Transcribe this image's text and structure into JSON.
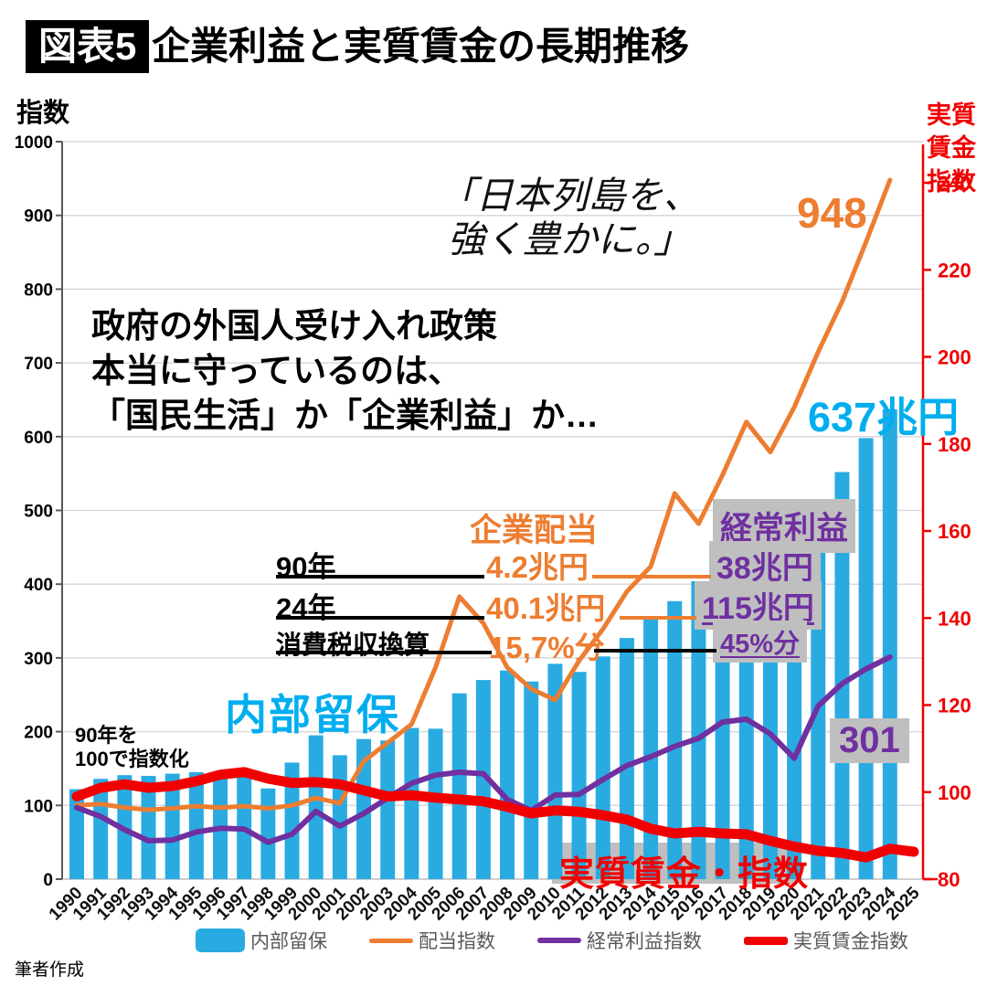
{
  "header": {
    "tag": "図表5",
    "title": "企業利益と実質賃金の長期推移"
  },
  "left_axis_title": "指数",
  "right_axis_title_lines": [
    "実質",
    "賃金",
    "指数"
  ],
  "annotations": {
    "quote": [
      "「日本列島を、",
      "強く豊かに。」"
    ],
    "black_note": [
      "政府の外国人受け入れ政策",
      "本当に守っているのは、",
      "「国民生活」か「企業利益」か…"
    ],
    "dividend_peak": "948",
    "reserves_value": "637兆円",
    "reserves_label": "内部留保",
    "profit_peak": "301",
    "index_note": [
      "90年を",
      "100で指数化"
    ],
    "real_wage_label": "実質賃金・指数",
    "table": {
      "col_dividend_header": "企業配当",
      "col_profit_header": "経常利益",
      "rows": [
        {
          "label": "90年",
          "dividend": "4.2兆円",
          "profit": "38兆円"
        },
        {
          "label": "24年",
          "dividend": "40.1兆円",
          "profit": "115兆円"
        },
        {
          "label": "消費税収換算",
          "dividend": "15,7%分",
          "profit": "45%分"
        }
      ]
    }
  },
  "legend": [
    {
      "label": "内部留保",
      "color": "#29ABE2",
      "type": "bar"
    },
    {
      "label": "配当指数",
      "color": "#ED7D31",
      "type": "line"
    },
    {
      "label": "経常利益指数",
      "color": "#7030A0",
      "type": "line"
    },
    {
      "label": "実質賃金指数",
      "color": "#f00000",
      "type": "line"
    }
  ],
  "footer_credit": "筆者作成",
  "chart_data": {
    "type": "combo-bar-line",
    "title": "企業利益と実質賃金の長期推移",
    "x": [
      1990,
      1991,
      1992,
      1993,
      1994,
      1995,
      1996,
      1997,
      1998,
      1999,
      2000,
      2001,
      2002,
      2003,
      2004,
      2005,
      2006,
      2007,
      2008,
      2009,
      2010,
      2011,
      2012,
      2013,
      2014,
      2015,
      2016,
      2017,
      2018,
      2019,
      2020,
      2021,
      2022,
      2023,
      2024,
      2025
    ],
    "left_axis": {
      "label": "指数",
      "min": 0,
      "max": 1000,
      "step": 100,
      "note": "90年を100で指数化"
    },
    "right_axis": {
      "label": "実質賃金指数",
      "min": 80,
      "max": 240,
      "step": 20
    },
    "grid": true,
    "legend_position": "bottom",
    "series": [
      {
        "name": "内部留保",
        "type": "bar",
        "axis": "left",
        "color": "#29ABE2",
        "values": [
          122,
          136,
          141,
          140,
          143,
          145,
          142,
          146,
          123,
          158,
          195,
          168,
          190,
          188,
          205,
          204,
          252,
          270,
          283,
          268,
          292,
          281,
          302,
          327,
          352,
          377,
          404,
          430,
          450,
          462,
          478,
          514,
          552,
          598,
          637,
          null
        ]
      },
      {
        "name": "配当指数",
        "type": "line",
        "axis": "left",
        "color": "#ED7D31",
        "values": [
          100,
          102,
          97,
          94,
          96,
          99,
          97,
          99,
          96,
          100,
          110,
          103,
          160,
          185,
          210,
          287,
          383,
          347,
          287,
          258,
          243,
          296,
          339,
          390,
          424,
          523,
          482,
          548,
          620,
          579,
          640,
          715,
          783,
          864,
          948,
          null
        ]
      },
      {
        "name": "経常利益指数",
        "type": "line",
        "axis": "left",
        "color": "#7030A0",
        "values": [
          97,
          85,
          67,
          52,
          53,
          64,
          69,
          68,
          50,
          61,
          92,
          72,
          89,
          110,
          130,
          141,
          145,
          143,
          108,
          93,
          114,
          115,
          135,
          154,
          166,
          180,
          191,
          213,
          217,
          197,
          164,
          235,
          265,
          285,
          301,
          null
        ]
      },
      {
        "name": "実質賃金指数",
        "type": "line",
        "axis": "right",
        "color": "#f00000",
        "values": [
          99,
          101,
          101.8,
          101,
          101.4,
          102.5,
          104,
          104.6,
          103.1,
          102.1,
          102.3,
          101.8,
          100.4,
          99,
          99.3,
          98.7,
          98.3,
          97.9,
          96.6,
          95.1,
          95.8,
          95.5,
          94.7,
          93.7,
          91.6,
          90.5,
          90.9,
          90.5,
          90.3,
          88.8,
          87.5,
          86.5,
          86,
          85,
          87,
          86.3
        ]
      }
    ]
  }
}
